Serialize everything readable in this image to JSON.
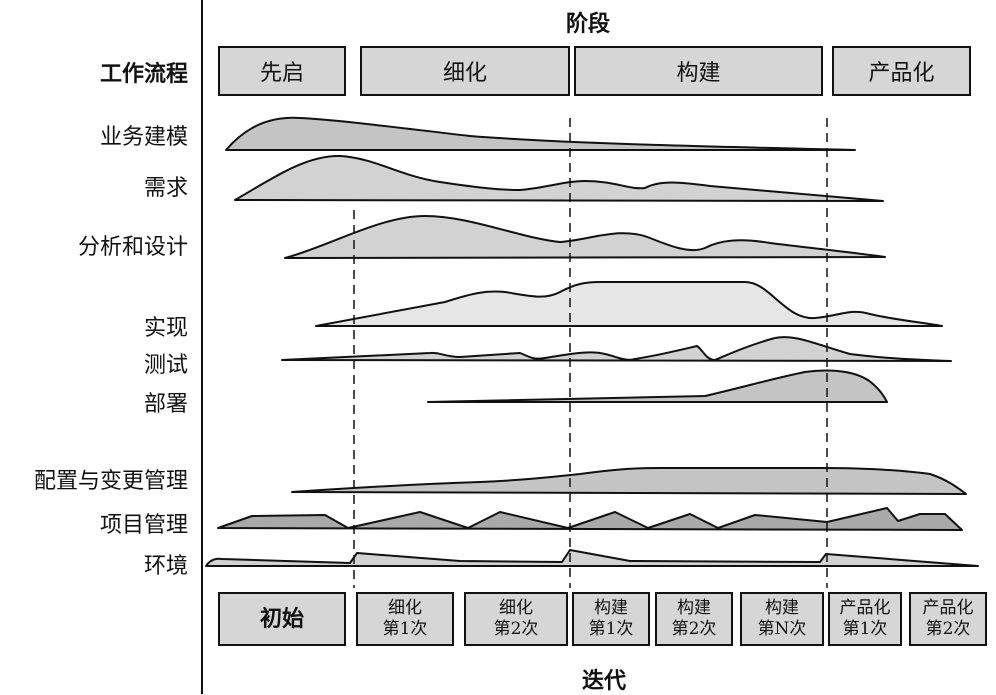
{
  "header": {
    "title": "阶段"
  },
  "footer": {
    "title": "迭代"
  },
  "workflow_header": "工作流程",
  "phases": [
    {
      "label": "先启"
    },
    {
      "label": "细化"
    },
    {
      "label": "构建"
    },
    {
      "label": "产品化"
    }
  ],
  "workflows": [
    {
      "label": "业务建模"
    },
    {
      "label": "需求"
    },
    {
      "label": "分析和设计"
    },
    {
      "label": "实现"
    },
    {
      "label": "测试"
    },
    {
      "label": "部署"
    },
    {
      "label": "配置与变更管理"
    },
    {
      "label": "项目管理"
    },
    {
      "label": "环境"
    }
  ],
  "iterations": [
    {
      "line1": "初始",
      "line2": ""
    },
    {
      "line1": "细化",
      "line2": "第1次"
    },
    {
      "line1": "细化",
      "line2": "第2次"
    },
    {
      "line1": "构建",
      "line2": "第1次"
    },
    {
      "line1": "构建",
      "line2": "第2次"
    },
    {
      "line1": "构建",
      "line2": "第N次"
    },
    {
      "line1": "产品化",
      "line2": "第1次"
    },
    {
      "line1": "产品化",
      "line2": "第2次"
    }
  ],
  "colors": {
    "dark": "#a9a9a9",
    "medium": "#c4c4c4",
    "light": "#e6e6e6",
    "box": "#d6d6d6"
  }
}
